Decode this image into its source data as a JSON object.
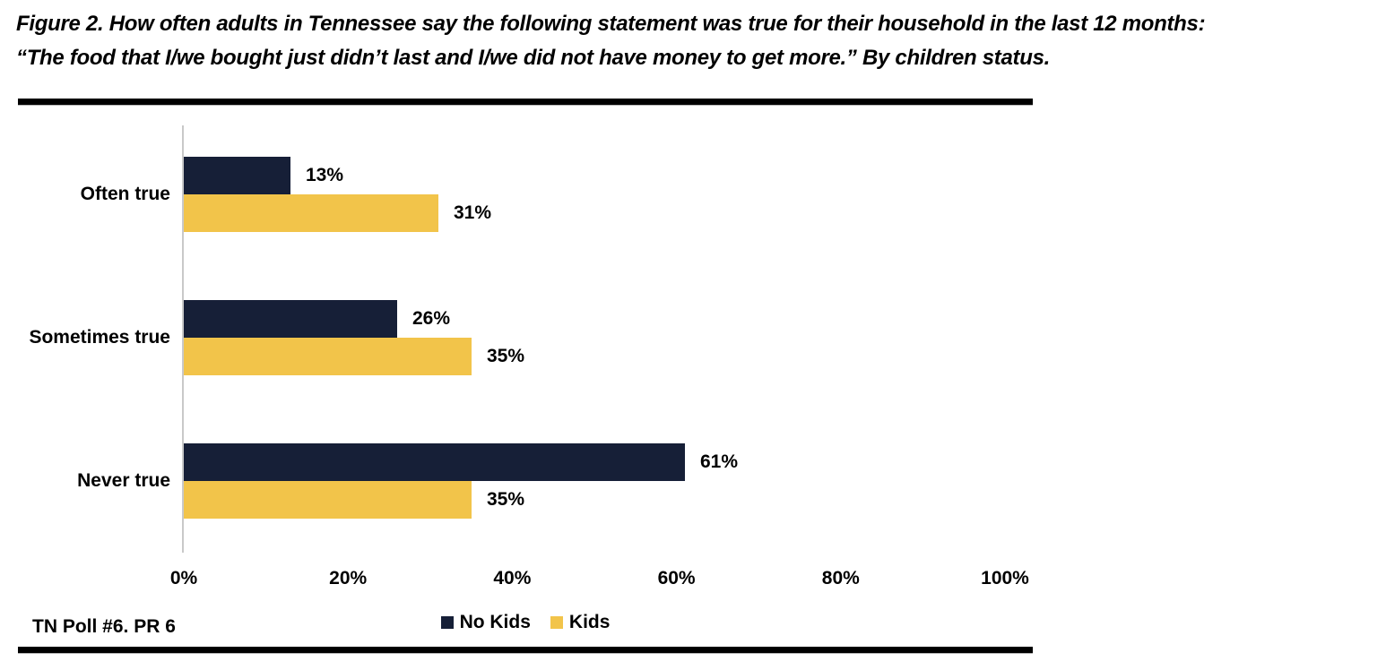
{
  "header": {
    "title_line1": "Figure 2. How often adults in Tennessee say the following statement was true for their household in the last 12 months:",
    "title_line2": "“The food that I/we bought just didn’t last and I/we did not have money to get more.” By children status."
  },
  "footer": {
    "source": "TN Poll #6. PR 6"
  },
  "chart_data": {
    "type": "bar",
    "orientation": "horizontal",
    "title": "Figure 2. How often adults in Tennessee say the following statement was true for their household in the last 12 months: “The food that I/we bought just didn’t last and I/we did not have money to get more.” By children status.",
    "categories": [
      "Often true",
      "Sometimes true",
      "Never true"
    ],
    "series": [
      {
        "name": "No Kids",
        "color": "#161F37",
        "values": [
          13,
          26,
          61
        ]
      },
      {
        "name": "Kids",
        "color": "#F2C44A",
        "values": [
          31,
          35,
          35
        ]
      }
    ],
    "value_suffix": "%",
    "xlim": [
      0,
      100
    ],
    "x_ticks": [
      "0%",
      "20%",
      "40%",
      "60%",
      "80%",
      "100%"
    ],
    "grid": false,
    "legend_position": "bottom",
    "axis_line_color": "#C9C9C9",
    "rule_color": "#000000",
    "text_color": "#000000",
    "background_color": "#FFFFFF"
  }
}
